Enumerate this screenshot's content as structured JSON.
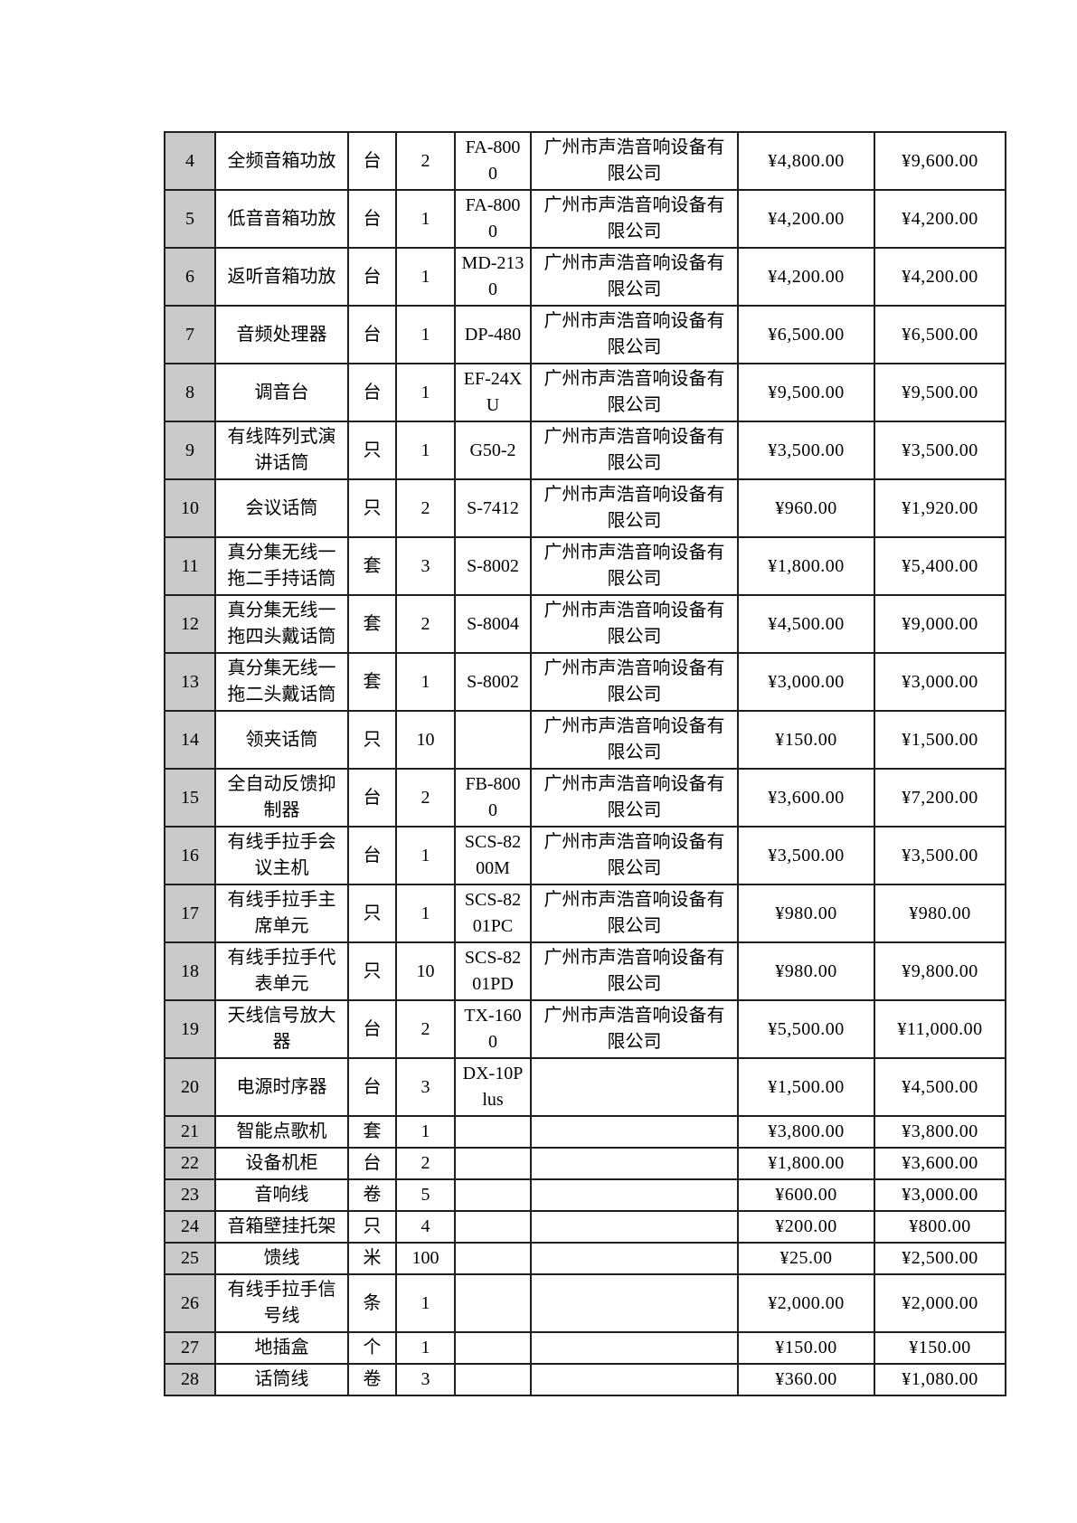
{
  "colors": {
    "page_background": "#ffffff",
    "index_column_background": "#c9c9c9",
    "grid_border": "#1f1f1f",
    "text": "#000000"
  },
  "table": {
    "rows": [
      {
        "no": "4",
        "name": "全频音箱功放",
        "unit": "台",
        "qty": "2",
        "model": "FA-800\n0",
        "supplier": "广州市声浩音响设备有\n限公司",
        "unit_price": "¥4,800.00",
        "amount": "¥9,600.00"
      },
      {
        "no": "5",
        "name": "低音音箱功放",
        "unit": "台",
        "qty": "1",
        "model": "FA-800\n0",
        "supplier": "广州市声浩音响设备有\n限公司",
        "unit_price": "¥4,200.00",
        "amount": "¥4,200.00"
      },
      {
        "no": "6",
        "name": "返听音箱功放",
        "unit": "台",
        "qty": "1",
        "model": "MD-213\n0",
        "supplier": "广州市声浩音响设备有\n限公司",
        "unit_price": "¥4,200.00",
        "amount": "¥4,200.00"
      },
      {
        "no": "7",
        "name": "音频处理器",
        "unit": "台",
        "qty": "1",
        "model": "DP-480",
        "supplier": "广州市声浩音响设备有\n限公司",
        "unit_price": "¥6,500.00",
        "amount": "¥6,500.00"
      },
      {
        "no": "8",
        "name": "调音台",
        "unit": "台",
        "qty": "1",
        "model": "EF-24X\nU",
        "supplier": "广州市声浩音响设备有\n限公司",
        "unit_price": "¥9,500.00",
        "amount": "¥9,500.00"
      },
      {
        "no": "9",
        "name": "有线阵列式演\n讲话筒",
        "unit": "只",
        "qty": "1",
        "model": "G50-2",
        "supplier": "广州市声浩音响设备有\n限公司",
        "unit_price": "¥3,500.00",
        "amount": "¥3,500.00"
      },
      {
        "no": "10",
        "name": "会议话筒",
        "unit": "只",
        "qty": "2",
        "model": "S-7412",
        "supplier": "广州市声浩音响设备有\n限公司",
        "unit_price": "¥960.00",
        "amount": "¥1,920.00"
      },
      {
        "no": "11",
        "name": "真分集无线一\n拖二手持话筒",
        "unit": "套",
        "qty": "3",
        "model": "S-8002",
        "supplier": "广州市声浩音响设备有\n限公司",
        "unit_price": "¥1,800.00",
        "amount": "¥5,400.00"
      },
      {
        "no": "12",
        "name": "真分集无线一\n拖四头戴话筒",
        "unit": "套",
        "qty": "2",
        "model": "S-8004",
        "supplier": "广州市声浩音响设备有\n限公司",
        "unit_price": "¥4,500.00",
        "amount": "¥9,000.00"
      },
      {
        "no": "13",
        "name": "真分集无线一\n拖二头戴话筒",
        "unit": "套",
        "qty": "1",
        "model": "S-8002",
        "supplier": "广州市声浩音响设备有\n限公司",
        "unit_price": "¥3,000.00",
        "amount": "¥3,000.00"
      },
      {
        "no": "14",
        "name": "领夹话筒",
        "unit": "只",
        "qty": "10",
        "model": "",
        "supplier": "广州市声浩音响设备有\n限公司",
        "unit_price": "¥150.00",
        "amount": "¥1,500.00"
      },
      {
        "no": "15",
        "name": "全自动反馈抑\n制器",
        "unit": "台",
        "qty": "2",
        "model": "FB-800\n0",
        "supplier": "广州市声浩音响设备有\n限公司",
        "unit_price": "¥3,600.00",
        "amount": "¥7,200.00"
      },
      {
        "no": "16",
        "name": "有线手拉手会\n议主机",
        "unit": "台",
        "qty": "1",
        "model": "SCS-82\n00M",
        "supplier": "广州市声浩音响设备有\n限公司",
        "unit_price": "¥3,500.00",
        "amount": "¥3,500.00"
      },
      {
        "no": "17",
        "name": "有线手拉手主\n席单元",
        "unit": "只",
        "qty": "1",
        "model": "SCS-82\n01PC",
        "supplier": "广州市声浩音响设备有\n限公司",
        "unit_price": "¥980.00",
        "amount": "¥980.00"
      },
      {
        "no": "18",
        "name": "有线手拉手代\n表单元",
        "unit": "只",
        "qty": "10",
        "model": "SCS-82\n01PD",
        "supplier": "广州市声浩音响设备有\n限公司",
        "unit_price": "¥980.00",
        "amount": "¥9,800.00"
      },
      {
        "no": "19",
        "name": "天线信号放大\n器",
        "unit": "台",
        "qty": "2",
        "model": "TX-160\n0",
        "supplier": "广州市声浩音响设备有\n限公司",
        "unit_price": "¥5,500.00",
        "amount": "¥11,000.00"
      },
      {
        "no": "20",
        "name": "电源时序器",
        "unit": "台",
        "qty": "3",
        "model": "DX-10P\nlus",
        "supplier": "",
        "unit_price": "¥1,500.00",
        "amount": "¥4,500.00"
      },
      {
        "no": "21",
        "name": "智能点歌机",
        "unit": "套",
        "qty": "1",
        "model": "",
        "supplier": "",
        "unit_price": "¥3,800.00",
        "amount": "¥3,800.00"
      },
      {
        "no": "22",
        "name": "设备机柜",
        "unit": "台",
        "qty": "2",
        "model": "",
        "supplier": "",
        "unit_price": "¥1,800.00",
        "amount": "¥3,600.00"
      },
      {
        "no": "23",
        "name": "音响线",
        "unit": "卷",
        "qty": "5",
        "model": "",
        "supplier": "",
        "unit_price": "¥600.00",
        "amount": "¥3,000.00"
      },
      {
        "no": "24",
        "name": "音箱壁挂托架",
        "unit": "只",
        "qty": "4",
        "model": "",
        "supplier": "",
        "unit_price": "¥200.00",
        "amount": "¥800.00"
      },
      {
        "no": "25",
        "name": "馈线",
        "unit": "米",
        "qty": "100",
        "model": "",
        "supplier": "",
        "unit_price": "¥25.00",
        "amount": "¥2,500.00"
      },
      {
        "no": "26",
        "name": "有线手拉手信\n号线",
        "unit": "条",
        "qty": "1",
        "model": "",
        "supplier": "",
        "unit_price": "¥2,000.00",
        "amount": "¥2,000.00"
      },
      {
        "no": "27",
        "name": "地插盒",
        "unit": "个",
        "qty": "1",
        "model": "",
        "supplier": "",
        "unit_price": "¥150.00",
        "amount": "¥150.00"
      },
      {
        "no": "28",
        "name": "话筒线",
        "unit": "卷",
        "qty": "3",
        "model": "",
        "supplier": "",
        "unit_price": "¥360.00",
        "amount": "¥1,080.00"
      }
    ]
  }
}
